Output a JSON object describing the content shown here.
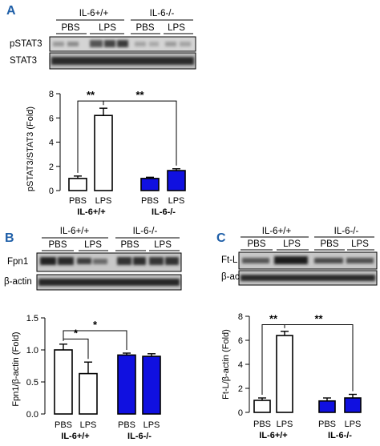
{
  "panels": {
    "a": {
      "letter": "A",
      "letter_color": "#1f5fa8"
    },
    "b": {
      "letter": "B",
      "letter_color": "#1f5fa8"
    },
    "c": {
      "letter": "C",
      "letter_color": "#1f5fa8"
    }
  },
  "blots": {
    "a": {
      "genotypes": [
        "IL-6+/+",
        "IL-6-/-"
      ],
      "treatments": [
        "PBS",
        "LPS",
        "PBS",
        "LPS"
      ],
      "rows": [
        "pSTAT3",
        "STAT3"
      ]
    },
    "b": {
      "genotypes": [
        "IL-6+/+",
        "IL-6-/-"
      ],
      "treatments": [
        "PBS",
        "LPS",
        "PBS",
        "LPS"
      ],
      "rows": [
        "Fpn1",
        "β-actin"
      ]
    },
    "c": {
      "genotypes": [
        "IL-6+/+",
        "IL-6-/-"
      ],
      "treatments": [
        "PBS",
        "LPS",
        "PBS",
        "LPS"
      ],
      "rows": [
        "Ft-L",
        "β-actin"
      ]
    }
  },
  "chart_data": [
    {
      "id": "a",
      "type": "bar",
      "ylabel": "pSTAT3/STAT3 (Fold)",
      "ylim": [
        0,
        8
      ],
      "yticks": [
        0,
        2,
        4,
        6,
        8
      ],
      "ytick_labels": [
        "0",
        "2",
        "4",
        "6",
        "8"
      ],
      "categories": [
        "PBS",
        "LPS",
        "PBS",
        "LPS"
      ],
      "groups": [
        "IL-6+/+",
        "IL-6-/-"
      ],
      "values": [
        1.0,
        6.2,
        1.0,
        1.65
      ],
      "errors": [
        0.2,
        0.6,
        0.1,
        0.15
      ],
      "fills": [
        "#ffffff",
        "#ffffff",
        "#1010e0",
        "#1010e0"
      ],
      "significance": [
        {
          "from": 0,
          "to": 1,
          "label": "**",
          "level": 7.4
        },
        {
          "from": 1,
          "to": 3,
          "label": "**",
          "level": 7.4
        }
      ]
    },
    {
      "id": "b",
      "type": "bar",
      "ylabel": "Fpn1/β-actin (Fold)",
      "ylim": [
        0,
        1.5
      ],
      "yticks": [
        0,
        0.5,
        1.0,
        1.5
      ],
      "ytick_labels": [
        "0.0",
        "0.5",
        "1.0",
        "1.5"
      ],
      "categories": [
        "PBS",
        "LPS",
        "PBS",
        "LPS"
      ],
      "groups": [
        "IL-6+/+",
        "IL-6-/-"
      ],
      "values": [
        1.0,
        0.63,
        0.92,
        0.9
      ],
      "errors": [
        0.09,
        0.18,
        0.03,
        0.04
      ],
      "fills": [
        "#ffffff",
        "#ffffff",
        "#1010e0",
        "#1010e0"
      ],
      "significance": [
        {
          "from": 0,
          "to": 1,
          "label": "*",
          "level": 1.17
        },
        {
          "from": 0,
          "to": 2,
          "label": "*",
          "level": 1.3
        }
      ]
    },
    {
      "id": "c",
      "type": "bar",
      "ylabel": "Ft-L/β-actin (Fold)",
      "ylim": [
        0,
        8
      ],
      "yticks": [
        0,
        2,
        4,
        6,
        8
      ],
      "ytick_labels": [
        "0",
        "2",
        "4",
        "6",
        "8"
      ],
      "categories": [
        "PBS",
        "LPS",
        "PBS",
        "LPS"
      ],
      "groups": [
        "IL-6+/+",
        "IL-6-/-"
      ],
      "values": [
        1.0,
        6.4,
        0.95,
        1.2
      ],
      "errors": [
        0.2,
        0.35,
        0.25,
        0.3
      ],
      "fills": [
        "#ffffff",
        "#ffffff",
        "#1010e0",
        "#1010e0"
      ],
      "significance": [
        {
          "from": 0,
          "to": 1,
          "label": "**",
          "level": 7.3
        },
        {
          "from": 1,
          "to": 3,
          "label": "**",
          "level": 7.3
        }
      ]
    }
  ]
}
